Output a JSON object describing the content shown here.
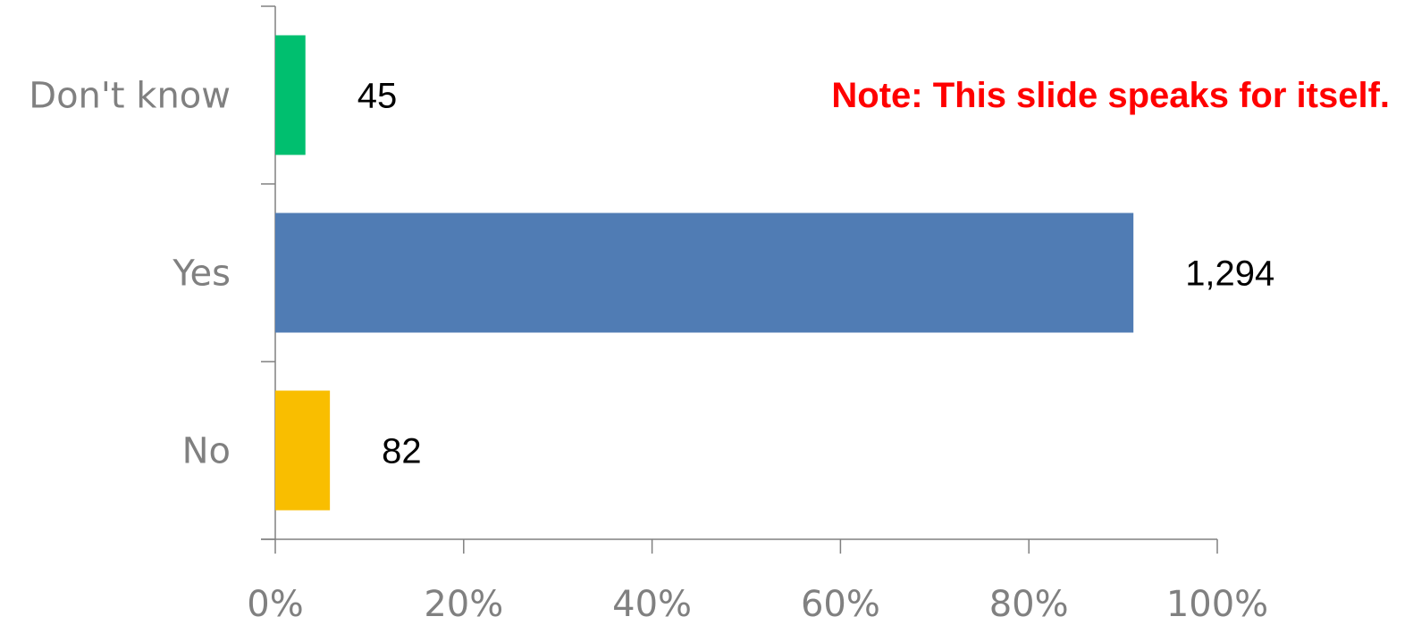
{
  "note": "Note:  This slide speaks for itself.",
  "colors": {
    "axis": "#808080",
    "note": "#ff0000"
  },
  "chart_data": {
    "type": "bar",
    "orientation": "horizontal",
    "categories": [
      "Don't know",
      "Yes",
      "No"
    ],
    "values": [
      3.2,
      91.1,
      5.8
    ],
    "data_labels": [
      "45",
      "1,294",
      "82"
    ],
    "colors": [
      "#00bf6f",
      "#507cb4",
      "#f9be00"
    ],
    "xlim": [
      0,
      100
    ],
    "xticks": [
      0,
      20,
      40,
      60,
      80,
      100
    ],
    "xtick_labels": [
      "0%",
      "20%",
      "40%",
      "60%",
      "80%",
      "100%"
    ],
    "grid": false,
    "legend": "none"
  }
}
